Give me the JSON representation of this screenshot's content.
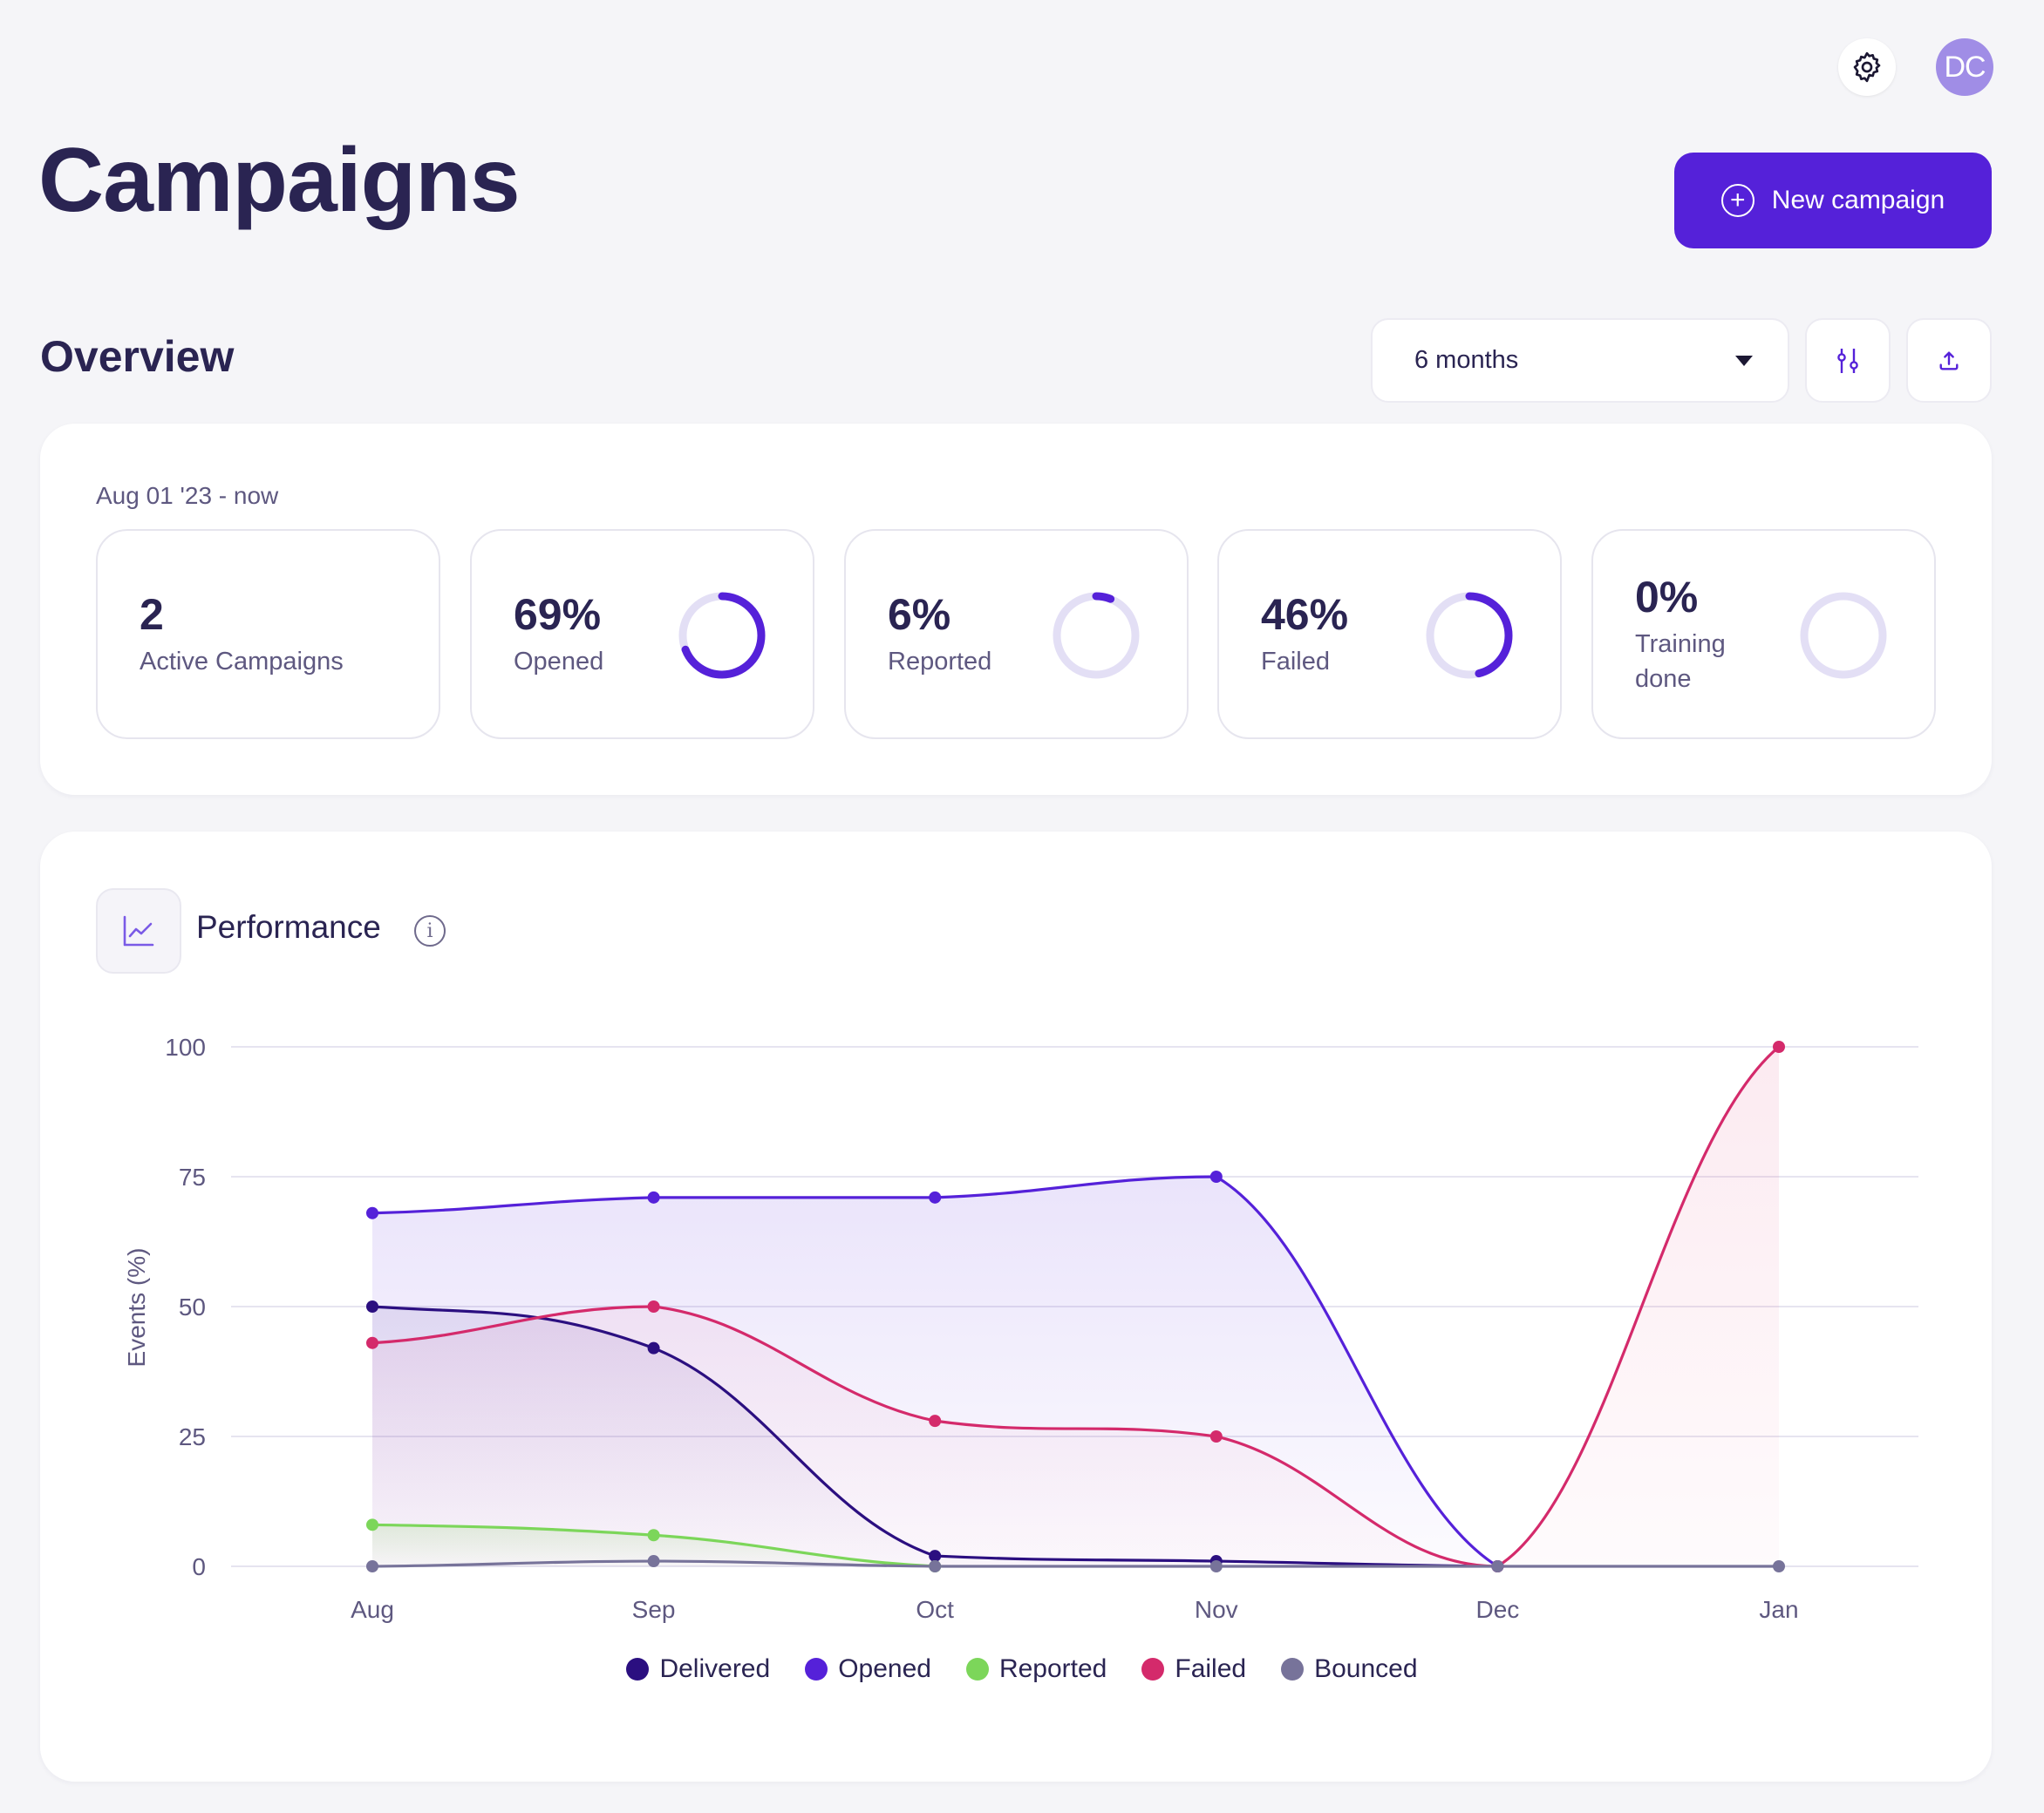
{
  "header": {
    "avatar_initials": "DC",
    "settings_icon": "gear-icon"
  },
  "page": {
    "title": "Campaigns",
    "new_campaign_label": "New campaign"
  },
  "overview": {
    "title": "Overview",
    "range_select": "6 months",
    "date_range": "Aug 01 '23 - now",
    "stats": [
      {
        "value": "2",
        "label": "Active Campaigns",
        "fraction": null
      },
      {
        "value": "69%",
        "label": "Opened",
        "fraction": 0.69
      },
      {
        "value": "6%",
        "label": "Reported",
        "fraction": 0.06
      },
      {
        "value": "46%",
        "label": "Failed",
        "fraction": 0.46
      },
      {
        "value": "0%",
        "label": "Training done",
        "fraction": 0.0
      }
    ],
    "ring_color": "#5521d9",
    "ring_track_color": "#e3dff5"
  },
  "performance": {
    "title": "Performance"
  },
  "chart_data": {
    "type": "line",
    "title": "Performance",
    "xlabel": "",
    "ylabel": "Events (%)",
    "categories": [
      "Aug",
      "Sep",
      "Oct",
      "Nov",
      "Dec",
      "Jan"
    ],
    "ylim": [
      0,
      100
    ],
    "yticks": [
      0,
      25,
      50,
      75,
      100
    ],
    "grid": true,
    "legend_position": "bottom",
    "series": [
      {
        "name": "Delivered",
        "color": "#2b0f80",
        "values": [
          50,
          42,
          2,
          1,
          0,
          null
        ]
      },
      {
        "name": "Opened",
        "color": "#5521d9",
        "values": [
          68,
          71,
          71,
          75,
          0,
          null
        ]
      },
      {
        "name": "Reported",
        "color": "#7cd65a",
        "values": [
          8,
          6,
          0,
          null,
          null,
          null
        ]
      },
      {
        "name": "Failed",
        "color": "#d42a6b",
        "values": [
          43,
          50,
          28,
          25,
          0,
          100
        ]
      },
      {
        "name": "Bounced",
        "color": "#77739a",
        "values": [
          0,
          1,
          0,
          0,
          0,
          0
        ]
      }
    ]
  }
}
